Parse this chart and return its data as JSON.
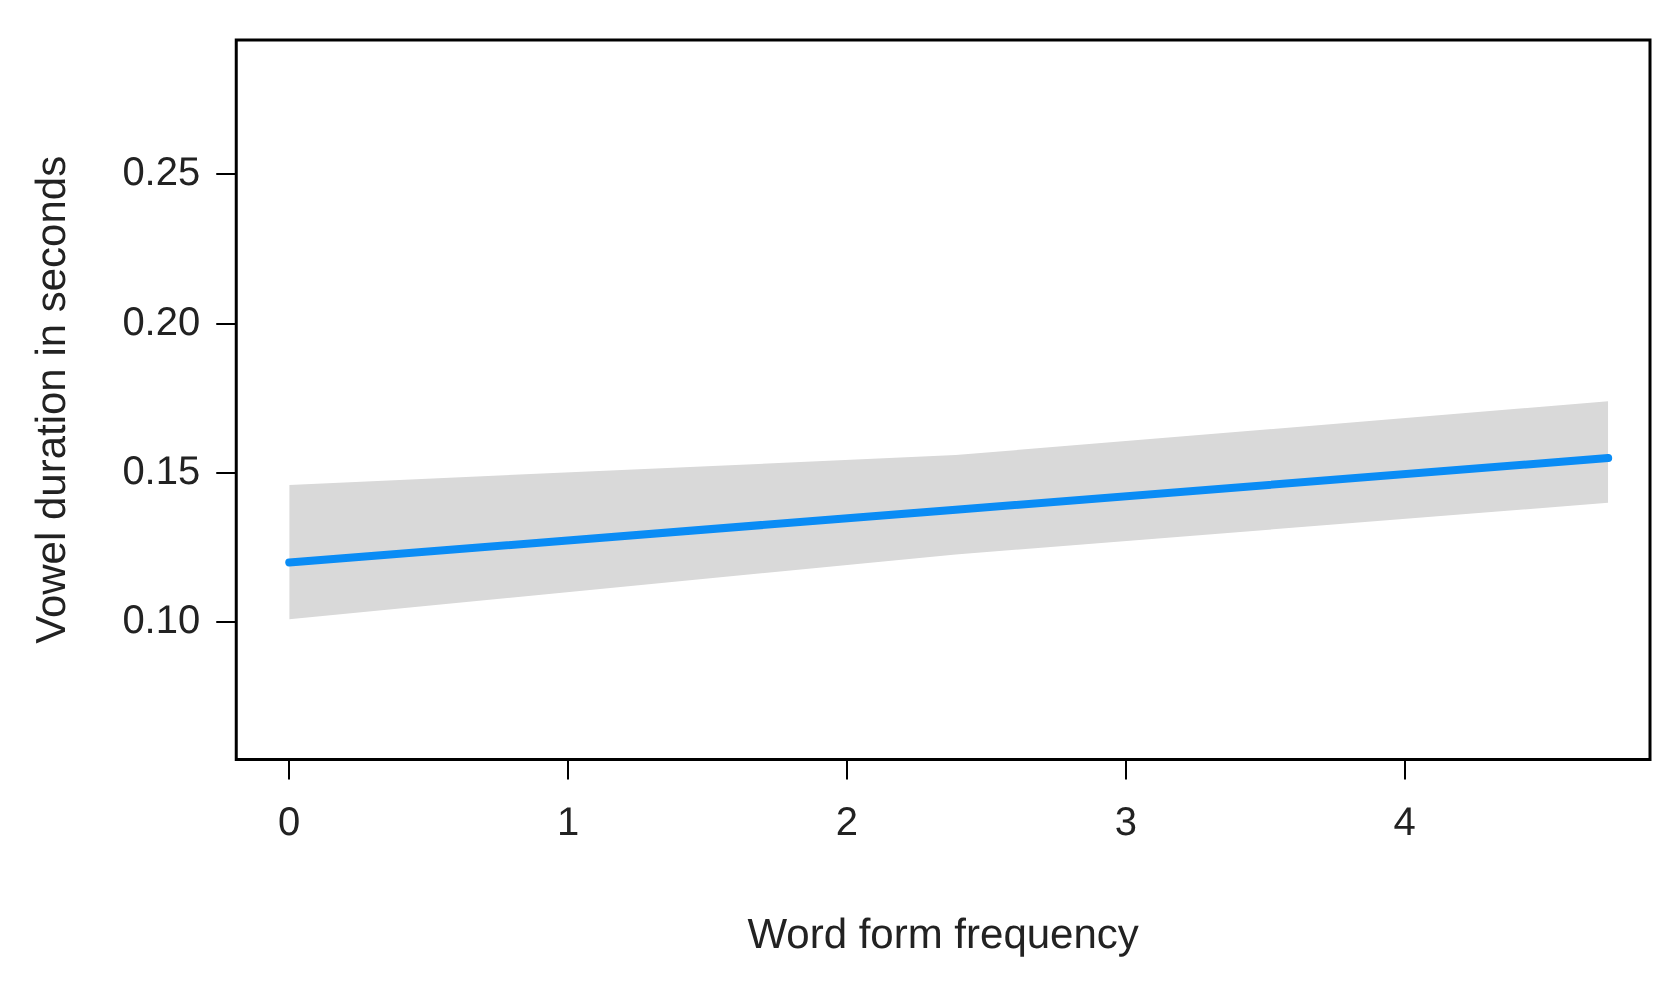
{
  "chart_data": {
    "type": "line",
    "xlabel": "Word form frequency",
    "ylabel": "Vowel duration in seconds",
    "series": [
      {
        "color": "#0a8cf5",
        "x": [
          0,
          2.39,
          4.73
        ],
        "values": [
          0.12,
          0.1377,
          0.155
        ],
        "lower": [
          0.101,
          0.1227,
          0.14
        ],
        "upper": [
          0.146,
          0.156,
          0.174
        ]
      }
    ],
    "xlim": [
      -0.19,
      4.88
    ],
    "xticks": [
      0,
      1,
      2,
      3,
      4
    ],
    "ylim": [
      0.054,
      0.295
    ],
    "yticks": [
      {
        "value": 0.1,
        "label": "0.10"
      },
      0.15,
      {
        "value": 0.2,
        "label": "0.20"
      },
      0.25
    ],
    "grid": false,
    "marker": "none",
    "line_style": "solid"
  }
}
